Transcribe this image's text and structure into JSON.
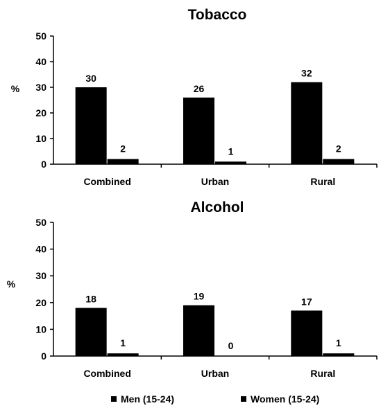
{
  "colors": {
    "men": "#000000",
    "women": "#000000",
    "axis": "#000000"
  },
  "legend": {
    "placement": "bottom",
    "items": [
      {
        "label": "Men (15-24)"
      },
      {
        "label": "Women (15-24)"
      }
    ]
  },
  "chart_data": [
    {
      "type": "bar",
      "title": "Tobacco",
      "ylabel": "%",
      "xlabel": "",
      "ylim": [
        0,
        50
      ],
      "yticks": [
        "0",
        "10",
        "20",
        "30",
        "40",
        "50"
      ],
      "categories": [
        "Combined",
        "Urban",
        "Rural"
      ],
      "series": [
        {
          "name": "Men (15-24)",
          "values": [
            30,
            26,
            32
          ]
        },
        {
          "name": "Women (15-24)",
          "values": [
            2,
            1,
            2
          ]
        }
      ],
      "grid": false
    },
    {
      "type": "bar",
      "title": "Alcohol",
      "ylabel": "%",
      "xlabel": "",
      "ylim": [
        0,
        50
      ],
      "yticks": [
        "0",
        "10",
        "20",
        "30",
        "40",
        "50"
      ],
      "categories": [
        "Combined",
        "Urban",
        "Rural"
      ],
      "series": [
        {
          "name": "Men (15-24)",
          "values": [
            18,
            19,
            17
          ]
        },
        {
          "name": "Women (15-24)",
          "values": [
            1,
            0,
            1
          ]
        }
      ],
      "grid": false
    }
  ]
}
